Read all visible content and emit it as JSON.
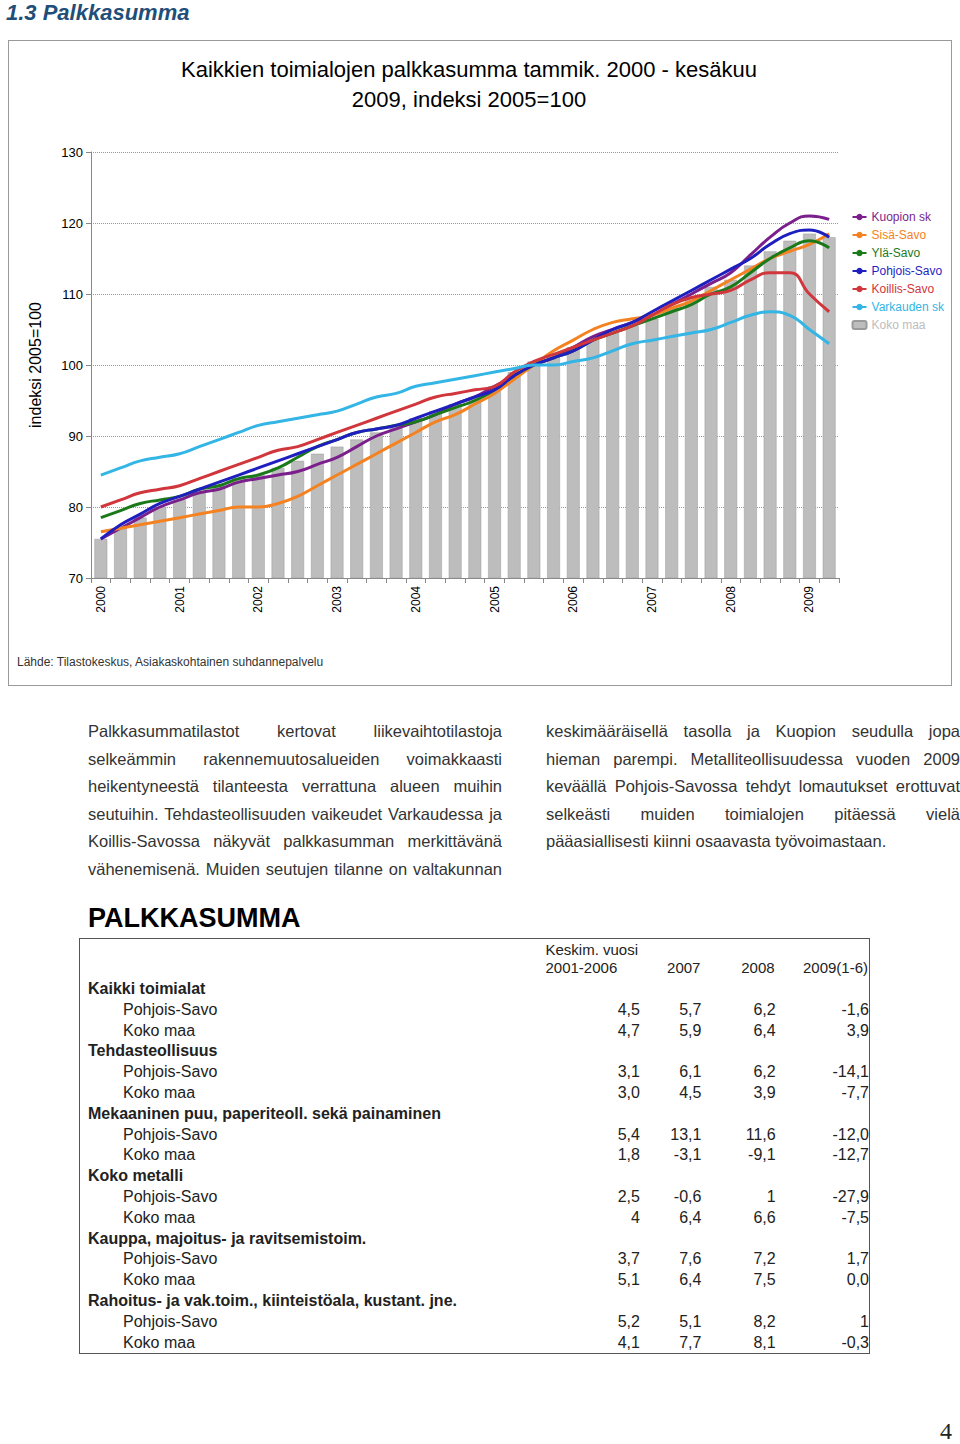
{
  "heading": "1.3 Palkkasumma",
  "chart_data": {
    "type": "bar",
    "title": "Kaikkien toimialojen palkkasumma tammik. 2000 - kesäkuu 2009, indeksi 2005=100",
    "ylabel": "indeksi 2005=100",
    "categories": [
      "2000",
      null,
      null,
      null,
      "2001",
      null,
      null,
      null,
      "2002",
      null,
      null,
      null,
      "2003",
      null,
      null,
      null,
      "2004",
      null,
      null,
      null,
      "2005",
      null,
      null,
      null,
      "2006",
      null,
      null,
      null,
      "2007",
      null,
      null,
      null,
      "2008",
      null,
      null,
      null,
      "2009",
      null
    ],
    "ylim": [
      70,
      130
    ],
    "yticks": [
      70,
      80,
      90,
      100,
      110,
      120,
      130
    ],
    "grid": true,
    "legend": "right",
    "series": [
      {
        "name": "Kuopion sk",
        "type": "line",
        "color": "#7b1f8c",
        "values": [
          75.5,
          77,
          78.5,
          80,
          81,
          82,
          82.5,
          83.5,
          84,
          84.5,
          85,
          86,
          87,
          88.5,
          90,
          91,
          92,
          93,
          94.5,
          95.5,
          97,
          98.5,
          100,
          101,
          102.5,
          104,
          105,
          106,
          107,
          108.5,
          110,
          111.5,
          113,
          115.5,
          118,
          120,
          121,
          120.5
        ]
      },
      {
        "name": "Sisä-Savo",
        "type": "line",
        "color": "#f58220",
        "values": [
          76.5,
          77,
          77.5,
          78,
          78.5,
          79,
          79.5,
          80,
          80,
          80.5,
          81.5,
          83,
          84.5,
          86,
          87.5,
          89,
          90.5,
          92,
          93,
          94.5,
          96,
          98,
          100,
          102,
          103.5,
          105,
          106,
          106.5,
          107,
          108,
          109,
          110.5,
          112,
          113.5,
          115,
          116,
          117,
          118.5
        ]
      },
      {
        "name": "Ylä-Savo",
        "type": "line",
        "color": "#1a7a1a",
        "values": [
          78.5,
          79.5,
          80.5,
          81,
          81.5,
          82.5,
          83,
          84,
          84.5,
          85.5,
          87,
          88.5,
          89.5,
          90.5,
          91,
          91.5,
          92,
          93,
          94,
          95,
          96.5,
          98.5,
          100,
          101,
          102,
          103.5,
          104.5,
          105.5,
          106.5,
          107.5,
          108.5,
          110,
          111,
          113,
          115,
          116.5,
          117.5,
          116.5
        ]
      },
      {
        "name": "Pohjois-Savo",
        "type": "line",
        "color": "#1f1fbf",
        "values": [
          75.5,
          77.5,
          79,
          80.5,
          81.5,
          82.5,
          83.5,
          84.5,
          85.5,
          86.5,
          87.5,
          88.5,
          89.5,
          90.5,
          91,
          91.5,
          92.5,
          93.5,
          94.5,
          95.5,
          96.5,
          98.5,
          100,
          101,
          102,
          103.5,
          105,
          106,
          107.5,
          109,
          110.5,
          112,
          113.5,
          115,
          117,
          118.5,
          119,
          118
        ]
      },
      {
        "name": "Koillis-Savo",
        "type": "line",
        "color": "#d0363b",
        "values": [
          80,
          81,
          82,
          82.5,
          83,
          84,
          85,
          86,
          87,
          88,
          88.5,
          89.5,
          90.5,
          91.5,
          92.5,
          93.5,
          94.5,
          95.5,
          96,
          96.5,
          97,
          99,
          100.5,
          101.5,
          102.5,
          103.5,
          104.5,
          105.5,
          107,
          108.5,
          109.5,
          110,
          110.5,
          112,
          113,
          113,
          110,
          107.5
        ]
      },
      {
        "name": "Varkauden sk",
        "type": "line",
        "color": "#33b5e5",
        "values": [
          84.5,
          85.5,
          86.5,
          87,
          87.5,
          88.5,
          89.5,
          90.5,
          91.5,
          92,
          92.5,
          93,
          93.5,
          94.5,
          95.5,
          96,
          97,
          97.5,
          98,
          98.5,
          99,
          99.5,
          100,
          100,
          100.5,
          101,
          102,
          103,
          103.5,
          104,
          104.5,
          105,
          106,
          107,
          107.5,
          107,
          105,
          103
        ]
      },
      {
        "name": "Koko maa",
        "type": "bar",
        "color": "#bdbdbd",
        "values": [
          75.5,
          77,
          78.5,
          80,
          81,
          82,
          83,
          84,
          84.5,
          85.5,
          86.5,
          87.5,
          88.5,
          89.5,
          90.5,
          91.5,
          92.5,
          93.5,
          94.5,
          95.5,
          97,
          99,
          100.5,
          101.5,
          102.5,
          103.5,
          104.5,
          105.5,
          106.5,
          108,
          109.5,
          111,
          112,
          114,
          116,
          117.5,
          118.5,
          118
        ]
      }
    ]
  },
  "source": "Lähde: Tilastokeskus, Asiakaskohtainen suhdannepalvelu",
  "paragraphs": [
    "Palkkasummatilastot kertovat liikevaihtotilastoja selkeämmin rakennemuutosalueiden voimakkaasti heikentyneestä tilanteesta verrattuna alueen muihin seutuihin. Tehdasteollisuuden vaikeudet Varkaudessa ja Koillis-Savossa näkyvät palkkasumman merkittävänä vähenemisenä. Muiden seutujen tilanne on valtakunnan keskimääräisellä tasolla ja Kuopion seudulla jopa hieman parempi. Metalliteollisuudessa vuoden 2009 keväällä Pohjois-Savossa tehdyt lomautukset erottuvat selkeästi muiden toimialojen pitäessä vielä pääasiallisesti kiinni osaavasta työvoimastaan."
  ],
  "table": {
    "title": "PALKKASUMMA",
    "columns": [
      "Keskim. vuosi 2001-2006",
      "2007",
      "2008",
      "2009(1-6)"
    ],
    "groups": [
      {
        "name": "Kaikki toimialat",
        "rows": [
          {
            "label": "Pohjois-Savo",
            "values": [
              "4,5",
              "5,7",
              "6,2",
              "-1,6"
            ]
          },
          {
            "label": "Koko maa",
            "values": [
              "4,7",
              "5,9",
              "6,4",
              "3,9"
            ]
          }
        ]
      },
      {
        "name": "Tehdasteollisuus",
        "rows": [
          {
            "label": "Pohjois-Savo",
            "values": [
              "3,1",
              "6,1",
              "6,2",
              "-14,1"
            ]
          },
          {
            "label": "Koko maa",
            "values": [
              "3,0",
              "4,5",
              "3,9",
              "-7,7"
            ]
          }
        ]
      },
      {
        "name": "Mekaaninen puu, paperiteoll. sekä painaminen",
        "rows": [
          {
            "label": "Pohjois-Savo",
            "values": [
              "5,4",
              "13,1",
              "11,6",
              "-12,0"
            ]
          },
          {
            "label": "Koko maa",
            "values": [
              "1,8",
              "-3,1",
              "-9,1",
              "-12,7"
            ]
          }
        ]
      },
      {
        "name": "Koko metalli",
        "rows": [
          {
            "label": "Pohjois-Savo",
            "values": [
              "2,5",
              "-0,6",
              "1",
              "-27,9"
            ]
          },
          {
            "label": "Koko maa",
            "values": [
              "4",
              "6,4",
              "6,6",
              "-7,5"
            ]
          }
        ]
      },
      {
        "name": "Kauppa, majoitus- ja ravitsemistoim.",
        "rows": [
          {
            "label": "Pohjois-Savo",
            "values": [
              "3,7",
              "7,6",
              "7,2",
              "1,7"
            ]
          },
          {
            "label": "Koko maa",
            "values": [
              "5,1",
              "6,4",
              "7,5",
              "0,0"
            ]
          }
        ]
      },
      {
        "name": "Rahoitus- ja vak.toim., kiinteistöala, kustant. jne.",
        "rows": [
          {
            "label": "Pohjois-Savo",
            "values": [
              "5,2",
              "5,1",
              "8,2",
              "1"
            ]
          },
          {
            "label": "Koko maa",
            "values": [
              "4,1",
              "7,7",
              "8,1",
              "-0,3"
            ]
          }
        ]
      }
    ]
  },
  "page_number": "4"
}
